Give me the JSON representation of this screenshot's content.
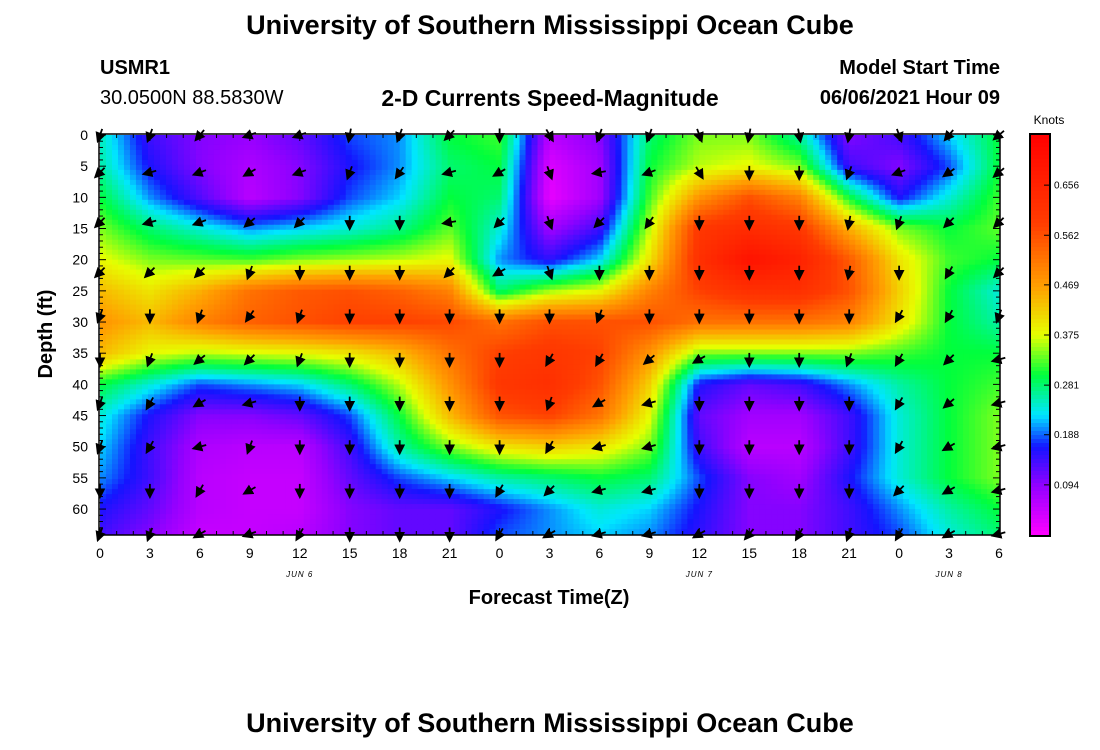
{
  "header": {
    "title_top": "University of Southern Mississippi Ocean Cube",
    "title_bottom": "University of Southern Mississippi Ocean Cube",
    "station_id": "USMR1",
    "station_coords": "30.0500N  88.5830W",
    "product": "2-D Currents Speed-Magnitude",
    "model_start_label": "Model Start Time",
    "model_start_value": "06/06/2021 Hour 09"
  },
  "chart_data": {
    "type": "heatmap",
    "title": "2-D Currents Speed-Magnitude",
    "xlabel": "Forecast Time(Z)",
    "ylabel": "Depth (ft)",
    "x_range_hours": [
      0,
      54
    ],
    "y_range_ft": [
      0,
      64
    ],
    "x_ticks": [
      {
        "hour": 0,
        "label": "0"
      },
      {
        "hour": 3,
        "label": "3"
      },
      {
        "hour": 6,
        "label": "6"
      },
      {
        "hour": 9,
        "label": "9"
      },
      {
        "hour": 12,
        "label": "12"
      },
      {
        "hour": 15,
        "label": "15"
      },
      {
        "hour": 18,
        "label": "18"
      },
      {
        "hour": 21,
        "label": "21"
      },
      {
        "hour": 24,
        "label": "0"
      },
      {
        "hour": 27,
        "label": "3"
      },
      {
        "hour": 30,
        "label": "6"
      },
      {
        "hour": 33,
        "label": "9"
      },
      {
        "hour": 36,
        "label": "12"
      },
      {
        "hour": 39,
        "label": "15"
      },
      {
        "hour": 42,
        "label": "18"
      },
      {
        "hour": 45,
        "label": "21"
      },
      {
        "hour": 48,
        "label": "0"
      },
      {
        "hour": 51,
        "label": "3"
      },
      {
        "hour": 54,
        "label": "6"
      }
    ],
    "y_ticks": [
      0,
      5,
      10,
      15,
      20,
      25,
      30,
      35,
      40,
      45,
      50,
      55,
      60
    ],
    "date_labels": [
      {
        "hour": 12,
        "label": "JUN 6"
      },
      {
        "hour": 36,
        "label": "JUN 7"
      },
      {
        "hour": 51,
        "label": "JUN 8"
      }
    ],
    "colorbar": {
      "unit": "Knots",
      "min": 0.0,
      "max": 0.75,
      "tick_values": [
        0.094,
        0.188,
        0.281,
        0.375,
        0.469,
        0.562,
        0.656
      ],
      "tick_labels": [
        "0.094",
        "0.188",
        "0.281",
        "0.375",
        "0.469",
        "0.562",
        "0.656"
      ]
    },
    "speed_grid": {
      "hours": [
        0,
        3,
        6,
        9,
        12,
        15,
        18,
        21,
        24,
        27,
        30,
        33,
        36,
        39,
        42,
        45,
        48,
        51,
        54
      ],
      "depths": [
        0,
        5,
        10,
        15,
        20,
        25,
        30,
        35,
        40,
        45,
        50,
        55,
        60,
        64
      ],
      "values": [
        [
          0.25,
          0.14,
          0.1,
          0.09,
          0.12,
          0.18,
          0.2,
          0.3,
          0.32,
          0.06,
          0.1,
          0.28,
          0.34,
          0.34,
          0.26,
          0.1,
          0.14,
          0.22,
          0.3
        ],
        [
          0.26,
          0.16,
          0.1,
          0.07,
          0.1,
          0.16,
          0.2,
          0.28,
          0.3,
          0.03,
          0.08,
          0.3,
          0.36,
          0.38,
          0.34,
          0.14,
          0.1,
          0.18,
          0.3
        ],
        [
          0.3,
          0.2,
          0.13,
          0.06,
          0.1,
          0.18,
          0.22,
          0.3,
          0.28,
          0.02,
          0.08,
          0.32,
          0.48,
          0.56,
          0.5,
          0.3,
          0.16,
          0.24,
          0.32
        ],
        [
          0.34,
          0.28,
          0.24,
          0.2,
          0.22,
          0.24,
          0.27,
          0.33,
          0.24,
          0.08,
          0.14,
          0.36,
          0.6,
          0.63,
          0.6,
          0.45,
          0.34,
          0.3,
          0.33
        ],
        [
          0.38,
          0.34,
          0.33,
          0.32,
          0.34,
          0.35,
          0.36,
          0.38,
          0.2,
          0.15,
          0.22,
          0.4,
          0.62,
          0.7,
          0.66,
          0.55,
          0.4,
          0.32,
          0.3
        ],
        [
          0.44,
          0.4,
          0.45,
          0.52,
          0.55,
          0.56,
          0.54,
          0.5,
          0.28,
          0.35,
          0.38,
          0.5,
          0.58,
          0.62,
          0.62,
          0.56,
          0.42,
          0.3,
          0.24
        ],
        [
          0.48,
          0.44,
          0.5,
          0.54,
          0.56,
          0.58,
          0.58,
          0.57,
          0.52,
          0.56,
          0.56,
          0.56,
          0.52,
          0.52,
          0.52,
          0.5,
          0.4,
          0.3,
          0.26
        ],
        [
          0.44,
          0.38,
          0.36,
          0.37,
          0.38,
          0.4,
          0.44,
          0.52,
          0.58,
          0.6,
          0.58,
          0.48,
          0.34,
          0.34,
          0.34,
          0.34,
          0.32,
          0.3,
          0.3
        ],
        [
          0.3,
          0.24,
          0.18,
          0.2,
          0.22,
          0.28,
          0.36,
          0.48,
          0.6,
          0.62,
          0.56,
          0.42,
          0.16,
          0.12,
          0.14,
          0.2,
          0.26,
          0.3,
          0.32
        ],
        [
          0.24,
          0.16,
          0.1,
          0.1,
          0.12,
          0.18,
          0.3,
          0.44,
          0.56,
          0.58,
          0.52,
          0.38,
          0.12,
          0.08,
          0.08,
          0.14,
          0.24,
          0.3,
          0.34
        ],
        [
          0.22,
          0.14,
          0.07,
          0.06,
          0.06,
          0.14,
          0.26,
          0.34,
          0.4,
          0.42,
          0.4,
          0.34,
          0.14,
          0.06,
          0.06,
          0.14,
          0.24,
          0.3,
          0.34
        ],
        [
          0.2,
          0.14,
          0.06,
          0.05,
          0.05,
          0.12,
          0.18,
          0.22,
          0.26,
          0.28,
          0.3,
          0.28,
          0.18,
          0.1,
          0.08,
          0.16,
          0.24,
          0.3,
          0.34
        ],
        [
          0.16,
          0.12,
          0.06,
          0.05,
          0.05,
          0.1,
          0.12,
          0.12,
          0.16,
          0.2,
          0.24,
          0.22,
          0.16,
          0.1,
          0.1,
          0.14,
          0.2,
          0.26,
          0.3
        ],
        [
          0.14,
          0.1,
          0.05,
          0.05,
          0.06,
          0.1,
          0.12,
          0.12,
          0.18,
          0.2,
          0.22,
          0.2,
          0.15,
          0.1,
          0.1,
          0.14,
          0.18,
          0.24,
          0.28
        ]
      ]
    },
    "vector_field": {
      "hours": [
        0,
        3,
        6,
        9,
        12,
        15,
        18,
        21,
        24,
        27,
        30,
        33,
        36,
        39,
        42,
        45,
        48,
        51,
        54
      ],
      "depths": [
        0,
        6,
        14,
        22,
        29,
        36,
        43,
        50,
        57,
        64
      ],
      "directions_deg": [
        [
          200,
          200,
          220,
          250,
          250,
          190,
          200,
          225,
          180,
          150,
          200,
          200,
          160,
          190,
          170,
          190,
          160,
          220,
          230
        ],
        [
          225,
          255,
          250,
          240,
          250,
          200,
          215,
          255,
          240,
          160,
          260,
          250,
          150,
          180,
          180,
          200,
          250,
          235,
          230
        ],
        [
          225,
          255,
          250,
          230,
          225,
          180,
          180,
          260,
          225,
          160,
          225,
          215,
          180,
          180,
          180,
          190,
          200,
          225,
          225
        ],
        [
          225,
          225,
          225,
          200,
          180,
          180,
          180,
          225,
          240,
          160,
          180,
          180,
          180,
          180,
          180,
          190,
          180,
          210,
          225
        ],
        [
          200,
          180,
          200,
          215,
          200,
          180,
          180,
          180,
          180,
          180,
          200,
          180,
          180,
          180,
          180,
          180,
          210,
          210,
          200
        ],
        [
          180,
          200,
          230,
          225,
          200,
          180,
          180,
          180,
          180,
          210,
          210,
          230,
          240,
          180,
          180,
          200,
          210,
          225,
          255
        ],
        [
          200,
          210,
          240,
          255,
          180,
          180,
          180,
          180,
          180,
          200,
          240,
          255,
          180,
          180,
          180,
          180,
          210,
          230,
          255
        ],
        [
          200,
          210,
          255,
          200,
          180,
          180,
          180,
          180,
          180,
          210,
          255,
          255,
          180,
          180,
          180,
          180,
          210,
          240,
          255
        ],
        [
          180,
          180,
          210,
          240,
          180,
          180,
          180,
          180,
          210,
          225,
          255,
          255,
          180,
          180,
          180,
          180,
          225,
          240,
          255
        ],
        [
          200,
          200,
          240,
          250,
          210,
          180,
          180,
          180,
          210,
          240,
          255,
          255,
          240,
          220,
          210,
          200,
          210,
          240,
          255
        ]
      ]
    }
  }
}
